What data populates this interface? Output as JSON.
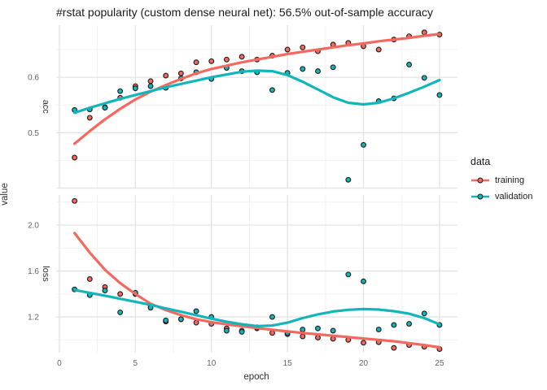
{
  "title": "#rstat popularity (custom dense neural net): 56.5% out-of-sample accuracy",
  "legend": {
    "title": "data",
    "items": [
      {
        "label": "training",
        "color": "#f4695f"
      },
      {
        "label": "validation",
        "color": "#12b6ba"
      }
    ]
  },
  "chart_data": {
    "type": "scatter",
    "title": "#rstat popularity (custom dense neural net): 56.5% out-of-sample accuracy",
    "xlabel": "epoch",
    "ylabel": "value",
    "legend_position": "right",
    "grid": true,
    "x": [
      1,
      2,
      3,
      4,
      5,
      6,
      7,
      8,
      9,
      10,
      11,
      12,
      13,
      14,
      15,
      16,
      17,
      18,
      19,
      20,
      21,
      22,
      23,
      24,
      25
    ],
    "xlim": [
      -0.21,
      26.18
    ],
    "x_ticks": [
      0,
      5,
      10,
      15,
      20,
      25
    ],
    "x_minor": [
      2.5,
      7.5,
      12.5,
      17.5,
      22.5
    ],
    "point_outline": "#1a1a1a",
    "facets": [
      {
        "name": "acc",
        "ylim": [
          0.4,
          0.694
        ],
        "yticks": [
          {
            "v": 0.5,
            "label": "0.5"
          },
          {
            "v": 0.6,
            "label": "0.6"
          }
        ],
        "ymajor_unlabeled": [
          0.4
        ],
        "yminor": [
          0.45,
          0.55,
          0.65
        ],
        "series": [
          {
            "name": "training",
            "color": "#f4695f",
            "points": [
              0.455,
              0.527,
              0.546,
              0.563,
              0.584,
              0.593,
              0.603,
              0.607,
              0.627,
              0.629,
              0.632,
              0.637,
              0.632,
              0.639,
              0.65,
              0.654,
              0.647,
              0.659,
              0.662,
              0.656,
              0.65,
              0.668,
              0.674,
              0.681,
              0.677
            ],
            "smooth": [
              0.48,
              0.503,
              0.524,
              0.543,
              0.56,
              0.574,
              0.586,
              0.597,
              0.607,
              0.615,
              0.621,
              0.627,
              0.632,
              0.637,
              0.642,
              0.646,
              0.65,
              0.654,
              0.658,
              0.661,
              0.665,
              0.668,
              0.671,
              0.675,
              0.678
            ]
          },
          {
            "name": "validation",
            "color": "#12b6ba",
            "points": [
              0.541,
              0.542,
              0.545,
              0.575,
              0.58,
              0.584,
              0.581,
              0.598,
              0.609,
              0.597,
              0.617,
              0.611,
              0.609,
              0.577,
              0.608,
              0.615,
              0.611,
              0.618,
              0.415,
              0.478,
              0.557,
              0.562,
              0.623,
              0.599,
              0.568
            ],
            "smooth": [
              0.536,
              0.545,
              0.553,
              0.561,
              0.568,
              0.575,
              0.582,
              0.588,
              0.594,
              0.6,
              0.605,
              0.61,
              0.612,
              0.611,
              0.604,
              0.592,
              0.578,
              0.564,
              0.554,
              0.551,
              0.554,
              0.562,
              0.572,
              0.583,
              0.595
            ]
          }
        ]
      },
      {
        "name": "loss",
        "ylim": [
          0.889,
          2.262
        ],
        "yticks": [
          {
            "v": 1.2,
            "label": "1.2"
          },
          {
            "v": 1.6,
            "label": "1.6"
          },
          {
            "v": 2.0,
            "label": "2.0"
          }
        ],
        "ymajor_unlabeled": [],
        "yminor": [
          1.0,
          1.4,
          1.8,
          2.2
        ],
        "series": [
          {
            "name": "training",
            "color": "#f4695f",
            "points": [
              2.21,
              1.53,
              1.46,
              1.4,
              1.4,
              1.3,
              1.16,
              1.18,
              1.15,
              1.14,
              1.1,
              1.08,
              1.1,
              1.06,
              1.05,
              1.03,
              1.02,
              1.01,
              1.0,
              0.975,
              0.98,
              0.93,
              0.955,
              0.94,
              0.92
            ],
            "smooth": [
              1.93,
              1.76,
              1.61,
              1.495,
              1.4,
              1.315,
              1.26,
              1.215,
              1.18,
              1.155,
              1.135,
              1.118,
              1.103,
              1.088,
              1.074,
              1.06,
              1.048,
              1.036,
              1.024,
              1.012,
              1.0,
              0.988,
              0.972,
              0.955,
              0.935
            ]
          },
          {
            "name": "validation",
            "color": "#12b6ba",
            "points": [
              1.44,
              1.39,
              1.43,
              1.24,
              1.41,
              1.28,
              1.17,
              1.18,
              1.25,
              1.2,
              1.08,
              1.07,
              1.11,
              1.2,
              1.06,
              1.09,
              1.1,
              1.08,
              1.57,
              1.51,
              1.09,
              1.13,
              1.14,
              1.23,
              1.13
            ],
            "smooth": [
              1.435,
              1.41,
              1.385,
              1.358,
              1.332,
              1.305,
              1.275,
              1.245,
              1.215,
              1.185,
              1.158,
              1.136,
              1.12,
              1.125,
              1.15,
              1.19,
              1.222,
              1.247,
              1.262,
              1.268,
              1.264,
              1.25,
              1.228,
              1.19,
              1.135
            ]
          }
        ]
      }
    ]
  }
}
